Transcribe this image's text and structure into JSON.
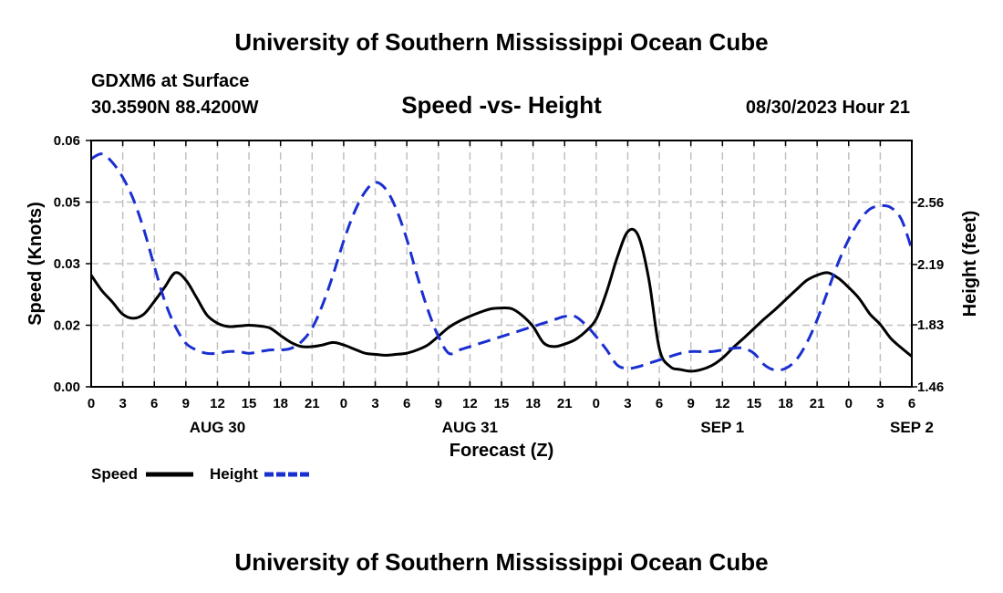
{
  "chart_data": {
    "type": "line",
    "title": "University of Southern Mississippi Ocean Cube",
    "footer_title": "University of Southern Mississippi Ocean Cube",
    "station": "GDXM6 at Surface",
    "coordinates": "30.3590N  88.4200W",
    "subtitle": "Speed -vs- Height",
    "timestamp": "08/30/2023 Hour 21",
    "xlabel": "Forecast (Z)",
    "ylabel_left": "Speed (Knots)",
    "ylabel_right": "Height (feet)",
    "x_ticks": [
      "0",
      "3",
      "6",
      "9",
      "12",
      "15",
      "18",
      "21",
      "0",
      "3",
      "6",
      "9",
      "12",
      "15",
      "18",
      "21",
      "0",
      "3",
      "6",
      "9",
      "12",
      "15",
      "18",
      "21",
      "0",
      "3",
      "6"
    ],
    "day_labels": [
      {
        "label": "AUG 30",
        "hour": 12
      },
      {
        "label": "AUG 31",
        "hour": 36
      },
      {
        "label": "SEP 1",
        "hour": 60
      },
      {
        "label": "SEP 2",
        "hour": 78
      }
    ],
    "left_ticks": [
      "0.00",
      "0.02",
      "0.03",
      "0.05",
      "0.06"
    ],
    "left_tick_values": [
      0,
      0.015,
      0.03,
      0.045,
      0.06
    ],
    "right_ticks": [
      "1.46",
      "1.83",
      "2.19",
      "2.56"
    ],
    "right_tick_values": [
      1.46,
      1.83,
      2.19,
      2.56
    ],
    "xlim": [
      0,
      78
    ],
    "ylim_left": [
      0,
      0.06
    ],
    "ylim_right": [
      1.46,
      2.93
    ],
    "series": [
      {
        "name": "Speed",
        "axis": "left",
        "color": "#000000",
        "dash": "solid",
        "x": [
          0,
          1,
          2,
          3,
          4,
          5,
          6,
          7,
          8,
          9,
          10,
          11,
          12,
          13,
          14,
          15,
          16,
          17,
          18,
          19,
          20,
          21,
          22,
          23,
          24,
          25,
          26,
          27,
          28,
          29,
          30,
          31,
          32,
          33,
          34,
          35,
          36,
          37,
          38,
          39,
          40,
          41,
          42,
          43,
          44,
          45,
          46,
          47,
          48,
          49,
          50,
          51,
          52,
          53,
          54,
          55,
          56,
          57,
          58,
          59,
          60,
          61,
          62,
          63,
          64,
          65,
          66,
          67,
          68,
          69,
          70,
          71,
          72,
          73,
          74,
          75,
          76,
          77,
          78
        ],
        "values": [
          0.0272,
          0.0235,
          0.0207,
          0.0177,
          0.0167,
          0.0177,
          0.0208,
          0.0243,
          0.0278,
          0.026,
          0.0218,
          0.0175,
          0.0155,
          0.0147,
          0.0148,
          0.015,
          0.0148,
          0.0143,
          0.0125,
          0.0108,
          0.0098,
          0.0098,
          0.0102,
          0.0108,
          0.0102,
          0.0092,
          0.0082,
          0.0079,
          0.0077,
          0.0079,
          0.0082,
          0.009,
          0.0102,
          0.0123,
          0.0145,
          0.016,
          0.0172,
          0.0182,
          0.019,
          0.0192,
          0.019,
          0.0173,
          0.0147,
          0.0107,
          0.0098,
          0.0104,
          0.0115,
          0.0135,
          0.0165,
          0.0232,
          0.0315,
          0.0378,
          0.0368,
          0.0263,
          0.0093,
          0.005,
          0.0042,
          0.0038,
          0.0042,
          0.0052,
          0.007,
          0.0095,
          0.0118,
          0.0142,
          0.0166,
          0.0188,
          0.0212,
          0.0236,
          0.0259,
          0.0272,
          0.0278,
          0.0265,
          0.0242,
          0.0215,
          0.0178,
          0.0152,
          0.0118,
          0.0095,
          0.0074
        ]
      },
      {
        "name": "Height",
        "axis": "right",
        "color": "#1a2fd0",
        "dash": "dashed",
        "x": [
          0,
          1,
          2,
          3,
          4,
          5,
          6,
          7,
          8,
          9,
          10,
          11,
          12,
          13,
          14,
          15,
          16,
          17,
          18,
          19,
          20,
          21,
          22,
          23,
          24,
          25,
          26,
          27,
          28,
          29,
          30,
          31,
          32,
          33,
          34,
          35,
          36,
          37,
          38,
          39,
          40,
          41,
          42,
          43,
          44,
          45,
          46,
          47,
          48,
          49,
          50,
          51,
          52,
          53,
          54,
          55,
          56,
          57,
          58,
          59,
          60,
          61,
          62,
          63,
          64,
          65,
          66,
          67,
          68,
          69,
          70,
          71,
          72,
          73,
          74,
          75,
          76,
          77,
          78
        ],
        "values": [
          2.82,
          2.85,
          2.8,
          2.71,
          2.58,
          2.4,
          2.18,
          1.97,
          1.82,
          1.72,
          1.68,
          1.66,
          1.66,
          1.67,
          1.67,
          1.66,
          1.67,
          1.68,
          1.68,
          1.69,
          1.73,
          1.81,
          1.95,
          2.13,
          2.33,
          2.5,
          2.62,
          2.68,
          2.64,
          2.52,
          2.34,
          2.12,
          1.92,
          1.76,
          1.66,
          1.68,
          1.7,
          1.72,
          1.74,
          1.76,
          1.78,
          1.8,
          1.82,
          1.84,
          1.86,
          1.88,
          1.88,
          1.83,
          1.76,
          1.68,
          1.59,
          1.57,
          1.58,
          1.6,
          1.62,
          1.64,
          1.66,
          1.67,
          1.67,
          1.67,
          1.68,
          1.69,
          1.69,
          1.66,
          1.59,
          1.56,
          1.57,
          1.62,
          1.72,
          1.86,
          2.03,
          2.2,
          2.34,
          2.45,
          2.52,
          2.54,
          2.53,
          2.46,
          2.28
        ]
      }
    ],
    "legend": [
      {
        "label": "Speed",
        "color": "#000000",
        "dash": "solid"
      },
      {
        "label": "Height",
        "color": "#1a2fd0",
        "dash": "dashed"
      }
    ]
  }
}
